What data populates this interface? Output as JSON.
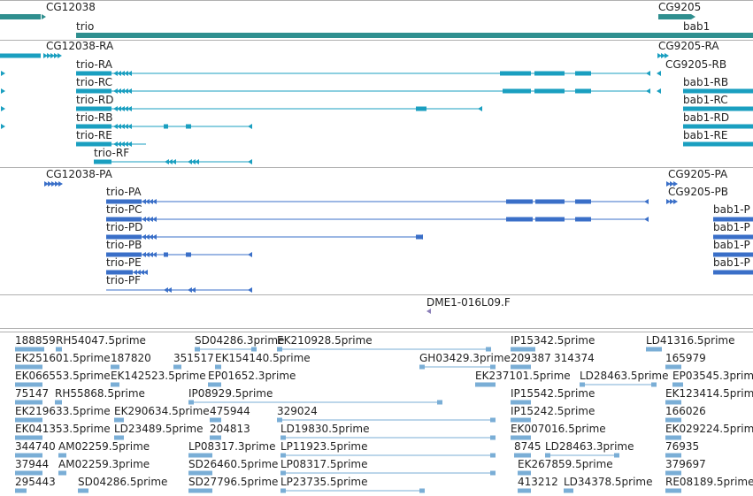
{
  "colors": {
    "gene": "#2f8f8f",
    "mrna": "#1a9fc0",
    "protein": "#3a6fc8",
    "clone": "#8b7fb8",
    "est": "#7aaed6",
    "border": "#b0b0b0"
  },
  "gene_track": {
    "labels": [
      "CG12038",
      "trio",
      "CG9205",
      "bab1"
    ]
  },
  "mrna_track": {
    "labels": [
      "CG12038-RA",
      "trio-RA",
      "trio-RC",
      "trio-RD",
      "trio-RB",
      "trio-RE",
      "trio-RF",
      "CG9205-RA",
      "CG9205-RB",
      "bab1-RB",
      "bab1-RC",
      "bab1-RD",
      "bab1-RE"
    ]
  },
  "protein_track": {
    "labels": [
      "CG12038-PA",
      "trio-PA",
      "trio-PC",
      "trio-PD",
      "trio-PB",
      "trio-PE",
      "trio-PF",
      "CG9205-PA",
      "CG9205-PB",
      "bab1-P",
      "bab1-P",
      "bab1-P",
      "bab1-P"
    ]
  },
  "clone_track": {
    "labels": [
      "DME1-016L09.F"
    ]
  },
  "est_track": {
    "labels": [
      "188859",
      "RH54047.5prime",
      "SD04286.3prime",
      "EK210928.5prime",
      "IP15342.5prime",
      "LD41316.5prime",
      "EK251601.5prime",
      "187820",
      "351517",
      "EK154140.5prime",
      "GH03429.3prime",
      "209387",
      "314374",
      "165979",
      "EK066553.5prime",
      "EK142523.5prime",
      "EP01652.3prime",
      "EK237101.5prime",
      "LD28463.5prime",
      "EP03545.3prime",
      "75147",
      "RH55868.5prime",
      "IP08929.5prime",
      "IP15542.5prime",
      "EK123414.5prime",
      "EK219633.5prime",
      "EK290634.5prime",
      "475944",
      "329024",
      "IP15242.5prime",
      "166026",
      "EK041353.5prime",
      "LD23489.5prime",
      "204813",
      "LD19830.5prime",
      "EK007016.5prime",
      "EK029224.5prime",
      "344740",
      "AM02259.5prime",
      "LP08317.3prime",
      "LP11923.5prime",
      "8745",
      "LD28463.3prime",
      "76935",
      "37944",
      "AM02259.3prime",
      "SD26460.5prime",
      "LP08317.5prime",
      "EK267859.5prime",
      "379697",
      "295443",
      "SD04286.5prime",
      "SD27796.5prime",
      "LP23735.5prime",
      "413212",
      "LD34378.5prime",
      "RE08189.5prime"
    ]
  }
}
